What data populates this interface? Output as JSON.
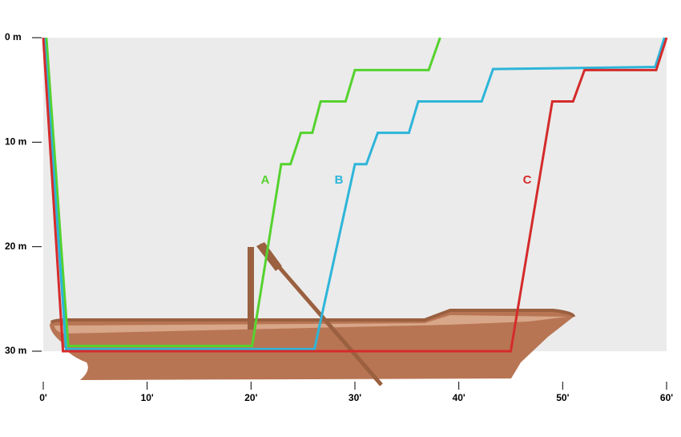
{
  "chart_data": {
    "type": "line",
    "xlim": [
      0,
      60
    ],
    "ylim": [
      0,
      30
    ],
    "y_inverted": true,
    "xticks": [
      {
        "value": 0,
        "label": "0'"
      },
      {
        "value": 10,
        "label": "10'"
      },
      {
        "value": 20,
        "label": "20'"
      },
      {
        "value": 30,
        "label": "30'"
      },
      {
        "value": 40,
        "label": "40'"
      },
      {
        "value": 50,
        "label": "50'"
      },
      {
        "value": 60,
        "label": "60'"
      }
    ],
    "yticks": [
      {
        "value": 0,
        "label": "0 m"
      },
      {
        "value": 10,
        "label": "10 m"
      },
      {
        "value": 20,
        "label": "20 m"
      },
      {
        "value": 30,
        "label": "30 m"
      }
    ],
    "background": "#ebebeb",
    "series": [
      {
        "name": "A",
        "color": "#55d22e",
        "x": [
          0.3,
          2.4,
          20.1,
          22.9,
          23.8,
          24.8,
          25.9,
          26.7,
          29.1,
          30,
          37.1,
          38.2
        ],
        "values": [
          0,
          29.5,
          29.5,
          12.1,
          12.1,
          9.1,
          9.1,
          6.1,
          6.1,
          3.1,
          3.1,
          0
        ]
      },
      {
        "name": "B",
        "color": "#2db5d9",
        "x": [
          0.1,
          2.2,
          26.1,
          30,
          31.1,
          32.2,
          35.2,
          36.1,
          42.2,
          43.3,
          58.9,
          59.8
        ],
        "values": [
          0,
          29.8,
          29.8,
          12.1,
          12.1,
          9.1,
          9.1,
          6.1,
          6.1,
          3,
          2.8,
          0
        ]
      },
      {
        "name": "C",
        "color": "#d52b2b",
        "x": [
          0,
          1.9,
          45,
          49,
          51,
          52.1,
          59,
          60
        ],
        "values": [
          0,
          30,
          30,
          6.1,
          6.1,
          3.1,
          3.1,
          0
        ]
      }
    ]
  }
}
